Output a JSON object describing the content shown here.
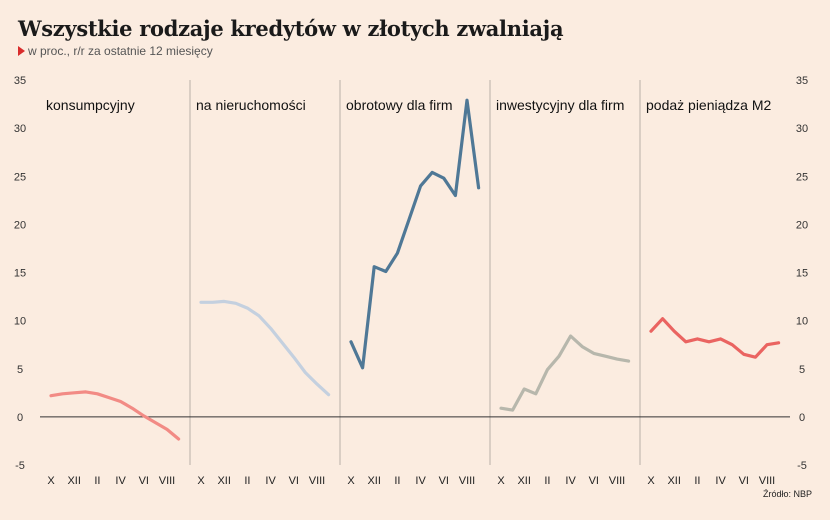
{
  "title": "Wszystkie rodzaje kredytów w złotych zwalniają",
  "subtitle": "w proc., r/r za ostatnie 12 miesięcy",
  "source": "Źródło: NBP",
  "chart_data": {
    "type": "line",
    "ylim": [
      -5,
      35
    ],
    "yticks": [
      -5,
      0,
      5,
      10,
      15,
      20,
      25,
      30,
      35
    ],
    "xtick_labels": [
      "X",
      "XII",
      "II",
      "IV",
      "VI",
      "VIII"
    ],
    "zero_line": true,
    "panels": [
      {
        "name": "konsumpcyjny",
        "color": "#f28b85",
        "values": [
          2.2,
          2.4,
          2.5,
          2.6,
          2.4,
          2.0,
          1.6,
          0.9,
          0.1,
          -0.6,
          -1.3,
          -2.3
        ]
      },
      {
        "name": "na nieruchomości",
        "color": "#c4d0df",
        "values": [
          11.9,
          11.9,
          12.0,
          11.8,
          11.3,
          10.5,
          9.2,
          7.7,
          6.2,
          4.6,
          3.4,
          2.3
        ]
      },
      {
        "name": "obrotowy dla firm",
        "color": "#4f7896",
        "values": [
          7.8,
          5.1,
          15.6,
          15.1,
          17.0,
          20.5,
          24.0,
          25.4,
          24.8,
          23.0,
          32.9,
          23.8
        ]
      },
      {
        "name": "inwestycyjny dla firm",
        "color": "#b7b7ac",
        "values": [
          0.9,
          0.7,
          2.9,
          2.4,
          4.9,
          6.3,
          8.4,
          7.3,
          6.6,
          6.3,
          6.0,
          5.8
        ]
      },
      {
        "name": "podaż pieniądza M2",
        "color": "#ea6461",
        "values": [
          8.9,
          10.2,
          8.9,
          7.8,
          8.1,
          7.8,
          8.1,
          7.5,
          6.5,
          6.2,
          7.5,
          7.7
        ]
      }
    ]
  }
}
